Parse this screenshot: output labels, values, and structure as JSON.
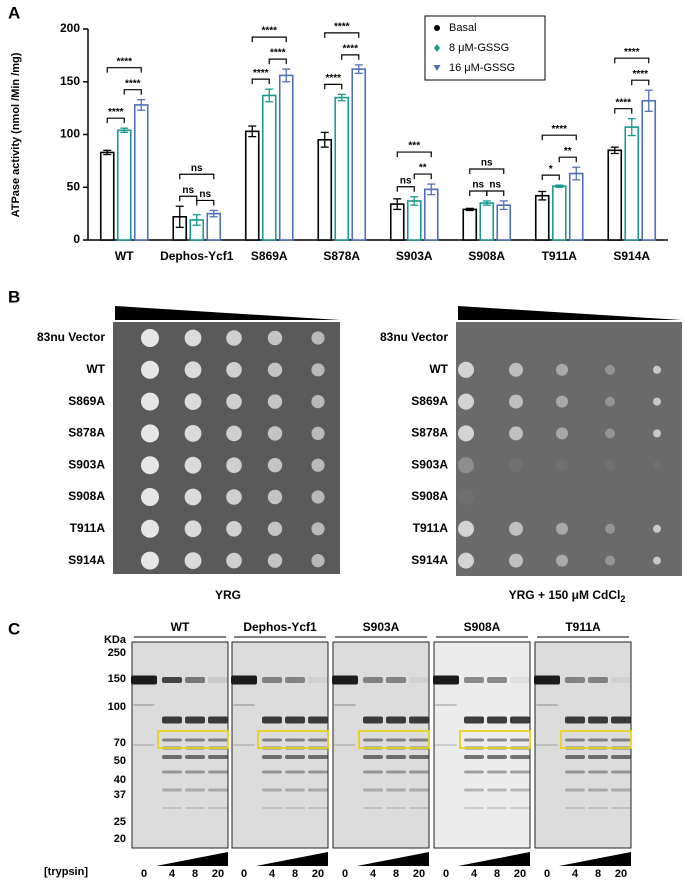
{
  "panels": [
    "A",
    "B",
    "C"
  ],
  "chart_data": {
    "type": "bar",
    "y_label": "ATPase activity (nmol /Min /mg)",
    "categories": [
      "WT",
      "Dephos-Ycf1",
      "S869A",
      "S878A",
      "S903A",
      "S908A",
      "T911A",
      "S914A"
    ],
    "series": [
      {
        "name": "Basal",
        "color": "#000000",
        "marker": "circle",
        "values": [
          83,
          22,
          103,
          95,
          34,
          29,
          42,
          85
        ],
        "errors": [
          2,
          10,
          5,
          7,
          5,
          1,
          4,
          3
        ]
      },
      {
        "name": "8 μM-GSSG",
        "color": "#1a9a8f",
        "marker": "diamond",
        "values": [
          104,
          19,
          137,
          135,
          37,
          35,
          51,
          107
        ],
        "errors": [
          2,
          5,
          6,
          3,
          4,
          2,
          1,
          8
        ]
      },
      {
        "name": "16 μM-GSSG",
        "color": "#4f6fba",
        "marker": "triangle-down",
        "values": [
          128,
          25,
          156,
          162,
          48,
          33,
          63,
          132
        ],
        "errors": [
          5,
          3,
          6,
          4,
          5,
          4,
          6,
          10
        ]
      }
    ],
    "significance": [
      [
        "****",
        "****",
        "****"
      ],
      [
        "ns",
        "ns",
        "ns"
      ],
      [
        "****",
        "****",
        "****"
      ],
      [
        "****",
        "****",
        "****"
      ],
      [
        "ns",
        "**",
        "***"
      ],
      [
        "ns",
        "ns",
        "ns"
      ],
      [
        "*",
        "**",
        "****"
      ],
      [
        "****",
        "****",
        "****"
      ]
    ],
    "ylim": [
      0,
      200
    ],
    "yticks": [
      0,
      50,
      100,
      150,
      200
    ],
    "grid": false,
    "legend": "upper right"
  },
  "spot_assay": {
    "strains": [
      "83nu  Vector",
      "WT",
      "S869A",
      "S878A",
      "S903A",
      "S908A",
      "T911A",
      "S914A"
    ],
    "plates": [
      {
        "label": "YRG"
      },
      {
        "label": "YRG + 150 μM CdCl",
        "subscript": "2"
      }
    ]
  },
  "gel": {
    "unit": "KDa",
    "markers": [
      250,
      150,
      100,
      70,
      50,
      40,
      37,
      25,
      20
    ],
    "samples": [
      "WT",
      "Dephos-Ycf1",
      "S903A",
      "S908A",
      "T911A"
    ],
    "reagent": "[trypsin]",
    "lanes": [
      0,
      4,
      8,
      20
    ]
  }
}
